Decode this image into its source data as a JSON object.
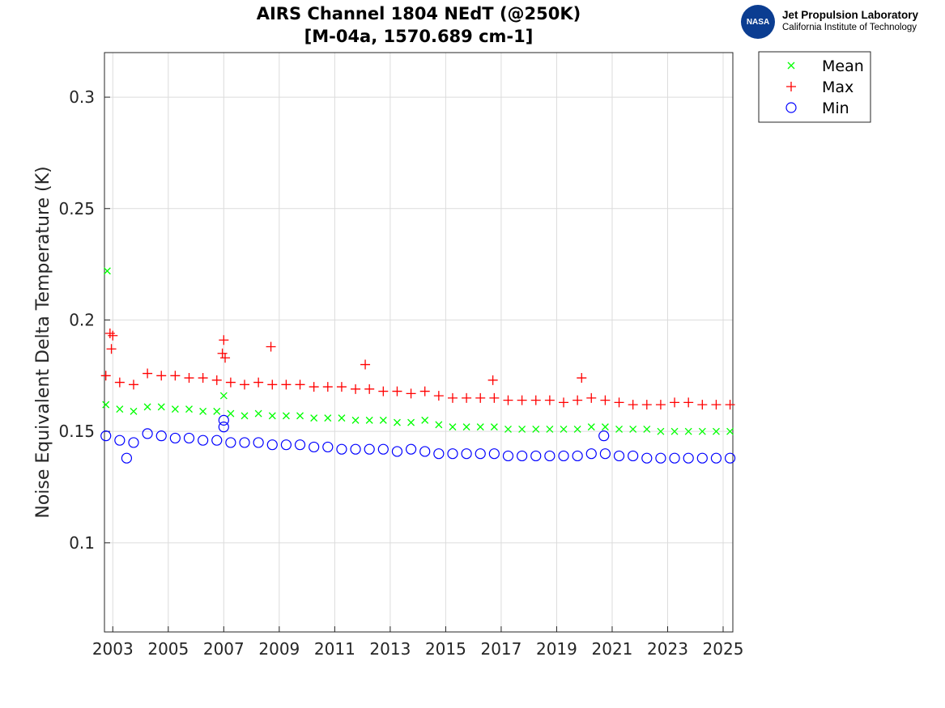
{
  "logo": {
    "line1": "Jet Propulsion Laboratory",
    "line2": "California Institute of Technology",
    "badge": "NASA"
  },
  "chart_data": {
    "type": "scatter",
    "title": [
      "AIRS Channel 1804 NEdT (@250K)",
      "[M-04a, 1570.689 cm-1]"
    ],
    "xlabel": "",
    "ylabel": "Noise Equivalent Delta Temperature (K)",
    "xlim": [
      2002.7,
      2025.35
    ],
    "ylim": [
      0.06,
      0.32
    ],
    "xticks": [
      2003,
      2005,
      2007,
      2009,
      2011,
      2013,
      2015,
      2017,
      2019,
      2021,
      2023,
      2025
    ],
    "yticks": [
      0.1,
      0.15,
      0.2,
      0.25,
      0.3
    ],
    "ytick_labels": [
      "0.1",
      "0.15",
      "0.2",
      "0.25",
      "0.3"
    ],
    "grid": true,
    "legend_position": "outside-top-right",
    "x": [
      2002.75,
      2003.25,
      2003.75,
      2004.25,
      2004.75,
      2005.25,
      2005.75,
      2006.25,
      2006.75,
      2007.25,
      2007.75,
      2008.25,
      2008.75,
      2009.25,
      2009.75,
      2010.25,
      2010.75,
      2011.25,
      2011.75,
      2012.25,
      2012.75,
      2013.25,
      2013.75,
      2014.25,
      2014.75,
      2015.25,
      2015.75,
      2016.25,
      2016.75,
      2017.25,
      2017.75,
      2018.25,
      2018.75,
      2019.25,
      2019.75,
      2020.25,
      2020.75,
      2021.25,
      2021.75,
      2022.25,
      2022.75,
      2023.25,
      2023.75,
      2024.25,
      2024.75,
      2025.25
    ],
    "series": [
      {
        "name": "Mean",
        "color": "#00ff00",
        "marker": "x",
        "values": [
          0.162,
          0.16,
          0.159,
          0.161,
          0.161,
          0.16,
          0.16,
          0.159,
          0.159,
          0.158,
          0.157,
          0.158,
          0.157,
          0.157,
          0.157,
          0.156,
          0.156,
          0.156,
          0.155,
          0.155,
          0.155,
          0.154,
          0.154,
          0.155,
          0.153,
          0.152,
          0.152,
          0.152,
          0.152,
          0.151,
          0.151,
          0.151,
          0.151,
          0.151,
          0.151,
          0.152,
          0.152,
          0.151,
          0.151,
          0.151,
          0.15,
          0.15,
          0.15,
          0.15,
          0.15,
          0.15
        ],
        "outliers": [
          [
            2002.8,
            0.222
          ],
          [
            2007.0,
            0.166
          ]
        ]
      },
      {
        "name": "Max",
        "color": "#ff0000",
        "marker": "+",
        "values": [
          0.175,
          0.172,
          0.171,
          0.176,
          0.175,
          0.175,
          0.174,
          0.174,
          0.173,
          0.172,
          0.171,
          0.172,
          0.171,
          0.171,
          0.171,
          0.17,
          0.17,
          0.17,
          0.169,
          0.169,
          0.168,
          0.168,
          0.167,
          0.168,
          0.166,
          0.165,
          0.165,
          0.165,
          0.165,
          0.164,
          0.164,
          0.164,
          0.164,
          0.163,
          0.164,
          0.165,
          0.164,
          0.163,
          0.162,
          0.162,
          0.162,
          0.163,
          0.163,
          0.162,
          0.162,
          0.162
        ],
        "outliers": [
          [
            2002.9,
            0.194
          ],
          [
            2003.0,
            0.193
          ],
          [
            2002.95,
            0.187
          ],
          [
            2007.0,
            0.191
          ],
          [
            2006.95,
            0.185
          ],
          [
            2007.05,
            0.183
          ],
          [
            2008.7,
            0.188
          ],
          [
            2012.1,
            0.18
          ],
          [
            2019.9,
            0.174
          ],
          [
            2016.7,
            0.173
          ]
        ]
      },
      {
        "name": "Min",
        "color": "#0000ff",
        "marker": "o",
        "values": [
          0.148,
          0.146,
          0.145,
          0.149,
          0.148,
          0.147,
          0.147,
          0.146,
          0.146,
          0.145,
          0.145,
          0.145,
          0.144,
          0.144,
          0.144,
          0.143,
          0.143,
          0.142,
          0.142,
          0.142,
          0.142,
          0.141,
          0.142,
          0.141,
          0.14,
          0.14,
          0.14,
          0.14,
          0.14,
          0.139,
          0.139,
          0.139,
          0.139,
          0.139,
          0.139,
          0.14,
          0.14,
          0.139,
          0.139,
          0.138,
          0.138,
          0.138,
          0.138,
          0.138,
          0.138,
          0.138
        ],
        "outliers": [
          [
            2003.5,
            0.138
          ],
          [
            2007.0,
            0.155
          ],
          [
            2007.0,
            0.152
          ],
          [
            2020.7,
            0.148
          ]
        ]
      }
    ]
  }
}
